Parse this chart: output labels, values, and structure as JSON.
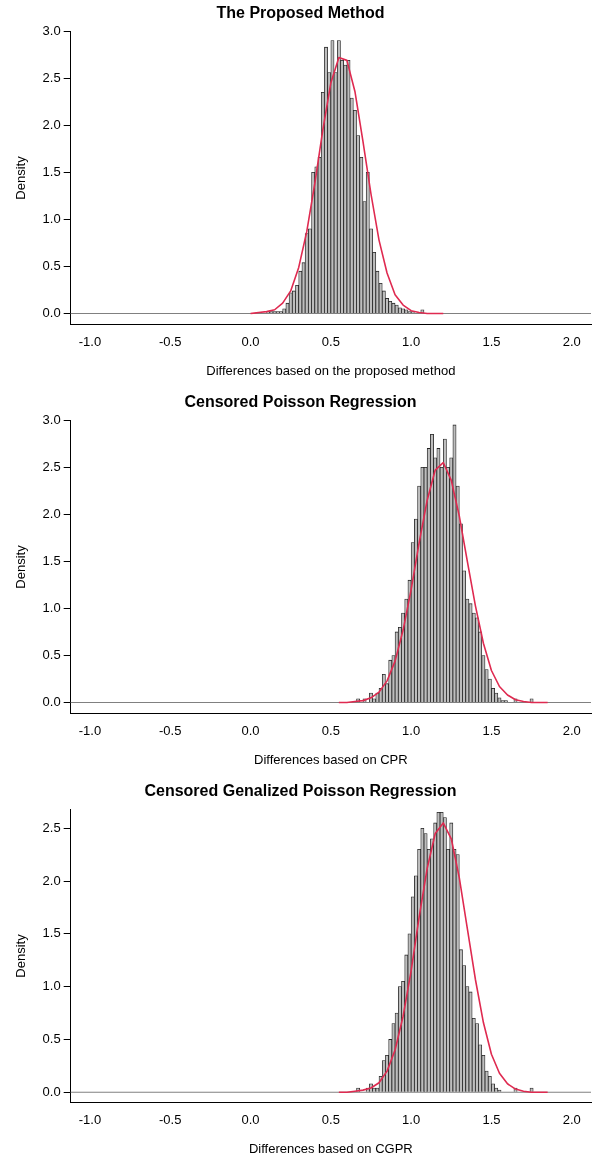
{
  "chart_data": [
    {
      "type": "histogram",
      "title": "The Proposed Method",
      "xlabel": "Differences based on the proposed method",
      "ylabel": "Density",
      "color": "#bebebe",
      "xlim": [
        -1.12,
        2.12
      ],
      "xticks": [
        {
          "value": -1,
          "label": "-1.0"
        },
        {
          "value": -0.5,
          "label": "-0.5"
        },
        {
          "value": 0,
          "label": "0.0"
        },
        {
          "value": 0.5,
          "label": "0.5"
        },
        {
          "value": 1,
          "label": "1.0"
        },
        {
          "value": 1.5,
          "label": "1.5"
        },
        {
          "value": 2,
          "label": "2.0"
        }
      ],
      "ylim": [
        -0.12,
        3.0
      ],
      "yticks": [
        {
          "value": 0,
          "label": "0.0"
        },
        {
          "value": 0.5,
          "label": "0.5"
        },
        {
          "value": 1,
          "label": "1.0"
        },
        {
          "value": 1.5,
          "label": "1.5"
        },
        {
          "value": 2,
          "label": "2.0"
        },
        {
          "value": 2.5,
          "label": "2.5"
        },
        {
          "value": 3,
          "label": "3.0"
        }
      ],
      "grid": false,
      "legend": false,
      "bins": [
        0.1,
        0.12,
        0.14,
        0.16,
        0.18,
        0.2,
        0.22,
        0.24,
        0.26,
        0.28,
        0.3,
        0.32,
        0.34,
        0.36,
        0.38,
        0.4,
        0.42,
        0.44,
        0.46,
        0.48,
        0.5,
        0.52,
        0.54,
        0.56,
        0.58,
        0.6,
        0.62,
        0.64,
        0.66,
        0.68,
        0.7,
        0.72,
        0.74,
        0.76,
        0.78,
        0.8,
        0.82,
        0.84,
        0.86,
        0.88,
        0.9,
        0.92,
        0.94,
        0.96,
        0.98,
        1.0,
        1.02,
        1.04,
        1.06,
        1.08,
        1.1
      ],
      "values": [
        0.02,
        0.02,
        0.02,
        0.02,
        0.02,
        0.05,
        0.11,
        0.22,
        0.24,
        0.3,
        0.45,
        0.54,
        0.85,
        0.9,
        1.5,
        1.56,
        1.66,
        2.35,
        2.83,
        2.56,
        2.9,
        2.56,
        2.9,
        2.69,
        2.64,
        2.69,
        2.29,
        2.16,
        1.89,
        1.66,
        1.19,
        1.5,
        0.9,
        0.65,
        0.45,
        0.32,
        0.24,
        0.16,
        0.13,
        0.11,
        0.09,
        0.06,
        0.05,
        0.04,
        0.02,
        0.02,
        null,
        0,
        0.04,
        0
      ],
      "ref_lines": [
        {
          "axis": "y",
          "value": 0,
          "color": "#808080"
        }
      ],
      "series": [
        {
          "type": "line",
          "color": "#df2a50",
          "x": [
            0.0,
            0.05,
            0.1,
            0.15,
            0.2,
            0.25,
            0.3,
            0.35,
            0.4,
            0.45,
            0.5,
            0.55,
            0.6,
            0.65,
            0.7,
            0.75,
            0.8,
            0.85,
            0.9,
            0.95,
            1.0,
            1.05,
            1.1,
            1.15,
            1.2
          ],
          "values": [
            0,
            0.01,
            0.02,
            0.04,
            0.11,
            0.24,
            0.49,
            0.87,
            1.38,
            1.95,
            2.45,
            2.72,
            2.69,
            2.36,
            1.83,
            1.27,
            0.78,
            0.43,
            0.2,
            0.09,
            0.03,
            0.01,
            0,
            0,
            0
          ]
        }
      ]
    },
    {
      "type": "histogram",
      "title": "Censored Poisson Regression",
      "xlabel": "Differences based on CPR",
      "ylabel": "Density",
      "color": "#bebebe",
      "xlim": [
        -1.12,
        2.12
      ],
      "xticks": [
        {
          "value": -1,
          "label": "-1.0"
        },
        {
          "value": -0.5,
          "label": "-0.5"
        },
        {
          "value": 0,
          "label": "0.0"
        },
        {
          "value": 0.5,
          "label": "0.5"
        },
        {
          "value": 1,
          "label": "1.0"
        },
        {
          "value": 1.5,
          "label": "1.5"
        },
        {
          "value": 2,
          "label": "2.0"
        }
      ],
      "ylim": [
        -0.12,
        3.0
      ],
      "yticks": [
        {
          "value": 0,
          "label": "0.0"
        },
        {
          "value": 0.5,
          "label": "0.5"
        },
        {
          "value": 1,
          "label": "1.0"
        },
        {
          "value": 1.5,
          "label": "1.5"
        },
        {
          "value": 2,
          "label": "2.0"
        },
        {
          "value": 2.5,
          "label": "2.5"
        },
        {
          "value": 3,
          "label": "3.0"
        }
      ],
      "grid": false,
      "legend": false,
      "bins": [
        0.66,
        0.68,
        0.7,
        0.72,
        0.74,
        0.76,
        0.78,
        0.8,
        0.82,
        0.84,
        0.86,
        0.88,
        0.9,
        0.92,
        0.94,
        0.96,
        0.98,
        1.0,
        1.02,
        1.04,
        1.06,
        1.08,
        1.1,
        1.12,
        1.14,
        1.16,
        1.18,
        1.2,
        1.22,
        1.24,
        1.26,
        1.28,
        1.3,
        1.32,
        1.34,
        1.36,
        1.38,
        1.4,
        1.42,
        1.44,
        1.46,
        1.48,
        1.5,
        1.52,
        1.54,
        1.56,
        1.58,
        1.6,
        1.62,
        1.64,
        1.66,
        1.68,
        1.7,
        1.72,
        1.74,
        1.76
      ],
      "values": [
        0.04,
        0,
        0.04,
        0,
        0.1,
        0.04,
        0.1,
        0.15,
        0.3,
        0.2,
        0.45,
        0.5,
        0.75,
        0.8,
        0.95,
        1.1,
        1.3,
        1.7,
        1.95,
        2.3,
        2.5,
        2.5,
        2.7,
        2.85,
        2.6,
        2.7,
        2.5,
        2.8,
        2.5,
        2.6,
        2.95,
        2.3,
        1.9,
        1.4,
        1.1,
        1.05,
        0.95,
        0.9,
        0.75,
        0.5,
        0.35,
        0.25,
        0.15,
        0.1,
        0.05,
        0.02,
        0.02,
        0,
        0,
        0.04,
        0,
        0,
        0,
        0,
        0.04
      ],
      "ref_lines": [
        {
          "axis": "y",
          "value": 0,
          "color": "#808080"
        }
      ],
      "series": [
        {
          "type": "line",
          "color": "#df2a50",
          "x": [
            0.55,
            0.6,
            0.65,
            0.7,
            0.75,
            0.8,
            0.85,
            0.9,
            0.95,
            1.0,
            1.05,
            1.1,
            1.15,
            1.2,
            1.25,
            1.3,
            1.35,
            1.4,
            1.45,
            1.5,
            1.55,
            1.6,
            1.65,
            1.7,
            1.75,
            1.8,
            1.85
          ],
          "values": [
            0,
            0,
            0.01,
            0.02,
            0.05,
            0.11,
            0.23,
            0.44,
            0.77,
            1.2,
            1.7,
            2.15,
            2.47,
            2.55,
            2.36,
            1.98,
            1.5,
            1.03,
            0.63,
            0.34,
            0.17,
            0.08,
            0.03,
            0.01,
            0,
            0,
            0
          ]
        }
      ]
    },
    {
      "type": "histogram",
      "title": "Censored Genalized Poisson Regression",
      "xlabel": "Differences based on CGPR",
      "ylabel": "Density",
      "color": "#bebebe",
      "xlim": [
        -1.12,
        2.12
      ],
      "xticks": [
        {
          "value": -1,
          "label": "-1.0"
        },
        {
          "value": -0.5,
          "label": "-0.5"
        },
        {
          "value": 0,
          "label": "0.0"
        },
        {
          "value": 0.5,
          "label": "0.5"
        },
        {
          "value": 1,
          "label": "1.0"
        },
        {
          "value": 1.5,
          "label": "1.5"
        },
        {
          "value": 2,
          "label": "2.0"
        }
      ],
      "ylim": [
        -0.1,
        2.68
      ],
      "yticks": [
        {
          "value": 0,
          "label": "0.0"
        },
        {
          "value": 0.5,
          "label": "0.5"
        },
        {
          "value": 1,
          "label": "1.0"
        },
        {
          "value": 1.5,
          "label": "1.5"
        },
        {
          "value": 2,
          "label": "2.0"
        },
        {
          "value": 2.5,
          "label": "2.5"
        }
      ],
      "grid": false,
      "legend": false,
      "bins": [
        0.66,
        0.68,
        0.7,
        0.72,
        0.74,
        0.76,
        0.78,
        0.8,
        0.82,
        0.84,
        0.86,
        0.88,
        0.9,
        0.92,
        0.94,
        0.96,
        0.98,
        1.0,
        1.02,
        1.04,
        1.06,
        1.08,
        1.1,
        1.12,
        1.14,
        1.16,
        1.18,
        1.2,
        1.22,
        1.24,
        1.26,
        1.28,
        1.3,
        1.32,
        1.34,
        1.36,
        1.38,
        1.4,
        1.42,
        1.44,
        1.46,
        1.48,
        1.5,
        1.52,
        1.54,
        1.56,
        1.58,
        1.6,
        1.62,
        1.64,
        1.66,
        1.68,
        1.7,
        1.72,
        1.74,
        1.76
      ],
      "values": [
        0.04,
        0,
        0,
        0.04,
        0.08,
        0.04,
        0.04,
        0.15,
        0.3,
        0.35,
        0.5,
        0.65,
        0.75,
        1.0,
        1.05,
        1.3,
        1.5,
        1.85,
        2.05,
        2.3,
        2.5,
        2.45,
        2.3,
        2.4,
        2.55,
        2.65,
        2.65,
        2.6,
        2.3,
        2.55,
        2.3,
        2.25,
        1.35,
        1.2,
        1.0,
        0.95,
        0.7,
        0.65,
        0.45,
        0.35,
        0.2,
        0.15,
        0.08,
        0.04,
        0.02,
        0,
        0,
        0,
        0,
        0.04,
        0,
        0,
        0,
        0,
        0.04
      ],
      "ref_lines": [
        {
          "axis": "y",
          "value": 0,
          "color": "#808080"
        }
      ],
      "series": [
        {
          "type": "line",
          "color": "#df2a50",
          "x": [
            0.55,
            0.6,
            0.65,
            0.7,
            0.75,
            0.8,
            0.85,
            0.9,
            0.95,
            1.0,
            1.05,
            1.1,
            1.15,
            1.2,
            1.25,
            1.3,
            1.35,
            1.4,
            1.45,
            1.5,
            1.55,
            1.6,
            1.65,
            1.7,
            1.75,
            1.8,
            1.85
          ],
          "values": [
            0,
            0,
            0.01,
            0.02,
            0.04,
            0.09,
            0.2,
            0.4,
            0.72,
            1.15,
            1.66,
            2.12,
            2.45,
            2.55,
            2.4,
            2.03,
            1.55,
            1.07,
            0.66,
            0.36,
            0.18,
            0.08,
            0.03,
            0.01,
            0,
            0,
            0
          ]
        }
      ]
    }
  ]
}
